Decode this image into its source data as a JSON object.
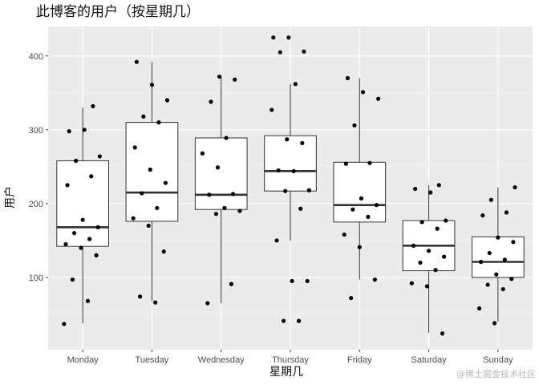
{
  "chart_data": {
    "type": "boxplot",
    "title": "此博客的用户（按星期几）",
    "xlabel": "星期几",
    "ylabel": "用户",
    "ylim": [
      2,
      440
    ],
    "yticks": [
      100,
      200,
      300,
      400
    ],
    "grid": true,
    "legend": "none",
    "categories": [
      "Monday",
      "Tuesday",
      "Wednesday",
      "Thursday",
      "Friday",
      "Saturday",
      "Sunday"
    ],
    "boxes": [
      {
        "category": "Monday",
        "whisker_low": 38,
        "q1": 142,
        "median": 168,
        "q3": 258,
        "whisker_high": 330
      },
      {
        "category": "Tuesday",
        "whisker_low": 68,
        "q1": 176,
        "median": 215,
        "q3": 310,
        "whisker_high": 392
      },
      {
        "category": "Wednesday",
        "whisker_low": 65,
        "q1": 192,
        "median": 212,
        "q3": 289,
        "whisker_high": 373
      },
      {
        "category": "Thursday",
        "whisker_low": 150,
        "q1": 217,
        "median": 244,
        "q3": 292,
        "whisker_high": 362
      },
      {
        "category": "Friday",
        "whisker_low": 97,
        "q1": 175,
        "median": 198,
        "q3": 256,
        "whisker_high": 370
      },
      {
        "category": "Saturday",
        "whisker_low": 25,
        "q1": 109,
        "median": 143,
        "q3": 177,
        "whisker_high": 225
      },
      {
        "category": "Sunday",
        "whisker_low": 40,
        "q1": 100,
        "median": 121,
        "q3": 155,
        "whisker_high": 222
      }
    ],
    "points": [
      {
        "category": "Monday",
        "values": [
          37,
          68,
          97,
          130,
          140,
          145,
          152,
          160,
          168,
          178,
          225,
          237,
          258,
          264,
          300,
          298,
          332
        ]
      },
      {
        "category": "Tuesday",
        "values": [
          66,
          74,
          135,
          170,
          180,
          194,
          214,
          228,
          246,
          276,
          310,
          318,
          340,
          361,
          392
        ]
      },
      {
        "category": "Wednesday",
        "values": [
          65,
          91,
          186,
          190,
          194,
          212,
          213,
          249,
          268,
          289,
          338,
          368,
          372
        ]
      },
      {
        "category": "Thursday",
        "values": [
          41,
          41,
          95,
          95,
          150,
          193,
          217,
          218,
          244,
          245,
          282,
          287,
          327,
          362,
          405,
          406,
          425,
          425
        ]
      },
      {
        "category": "Friday",
        "values": [
          72,
          97,
          141,
          158,
          182,
          192,
          198,
          207,
          254,
          255,
          306,
          342,
          351,
          370
        ]
      },
      {
        "category": "Saturday",
        "values": [
          24,
          88,
          92,
          110,
          120,
          128,
          136,
          143,
          166,
          175,
          177,
          215,
          220,
          225
        ]
      },
      {
        "category": "Sunday",
        "values": [
          38,
          58,
          84,
          90,
          98,
          104,
          121,
          124,
          133,
          148,
          154,
          184,
          188,
          205,
          222
        ]
      }
    ]
  },
  "watermark": "@稀土掘金技术社区"
}
